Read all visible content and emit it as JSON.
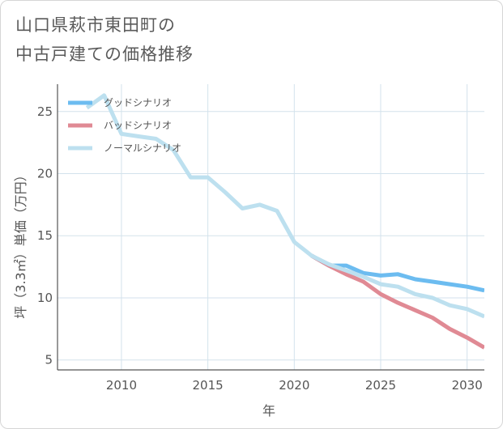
{
  "title_lines": [
    "山口県萩市東田町の",
    "中古戸建ての価格推移"
  ],
  "chart_data": {
    "type": "line",
    "xlabel": "年",
    "ylabel": "坪（3.3㎡）単価（万円）",
    "xlim": [
      2006.3,
      2031
    ],
    "ylim": [
      4.2,
      27.2
    ],
    "xticks": [
      2010,
      2015,
      2020,
      2025,
      2030
    ],
    "yticks": [
      5,
      10,
      15,
      20,
      25
    ],
    "grid": true,
    "legend_position": "top-left",
    "series": [
      {
        "name": "グッドシナリオ",
        "color": "#6cbcf0",
        "x": [
          2021,
          2022,
          2023,
          2024,
          2025,
          2026,
          2027,
          2028,
          2029,
          2030,
          2031
        ],
        "y": [
          13.4,
          12.6,
          12.6,
          12.0,
          11.8,
          11.9,
          11.5,
          11.3,
          11.1,
          10.9,
          10.6
        ]
      },
      {
        "name": "バッドシナリオ",
        "color": "#e08a94",
        "x": [
          2021,
          2022,
          2023,
          2024,
          2025,
          2026,
          2027,
          2028,
          2029,
          2030,
          2031
        ],
        "y": [
          13.4,
          12.6,
          11.9,
          11.3,
          10.3,
          9.6,
          9.0,
          8.4,
          7.5,
          6.8,
          6.0
        ]
      },
      {
        "name": "ノーマルシナリオ",
        "color": "#bde0ef",
        "x": [
          2008,
          2009,
          2010,
          2011,
          2012,
          2013,
          2014,
          2015,
          2016,
          2017,
          2018,
          2019,
          2020,
          2021,
          2022,
          2023,
          2024,
          2025,
          2026,
          2027,
          2028,
          2029,
          2030,
          2031
        ],
        "y": [
          25.3,
          26.3,
          23.2,
          23.0,
          22.8,
          21.9,
          19.7,
          19.7,
          18.5,
          17.2,
          17.5,
          17.0,
          14.5,
          13.4,
          12.7,
          12.2,
          11.7,
          11.1,
          10.9,
          10.3,
          10.0,
          9.4,
          9.1,
          8.5
        ]
      }
    ]
  }
}
